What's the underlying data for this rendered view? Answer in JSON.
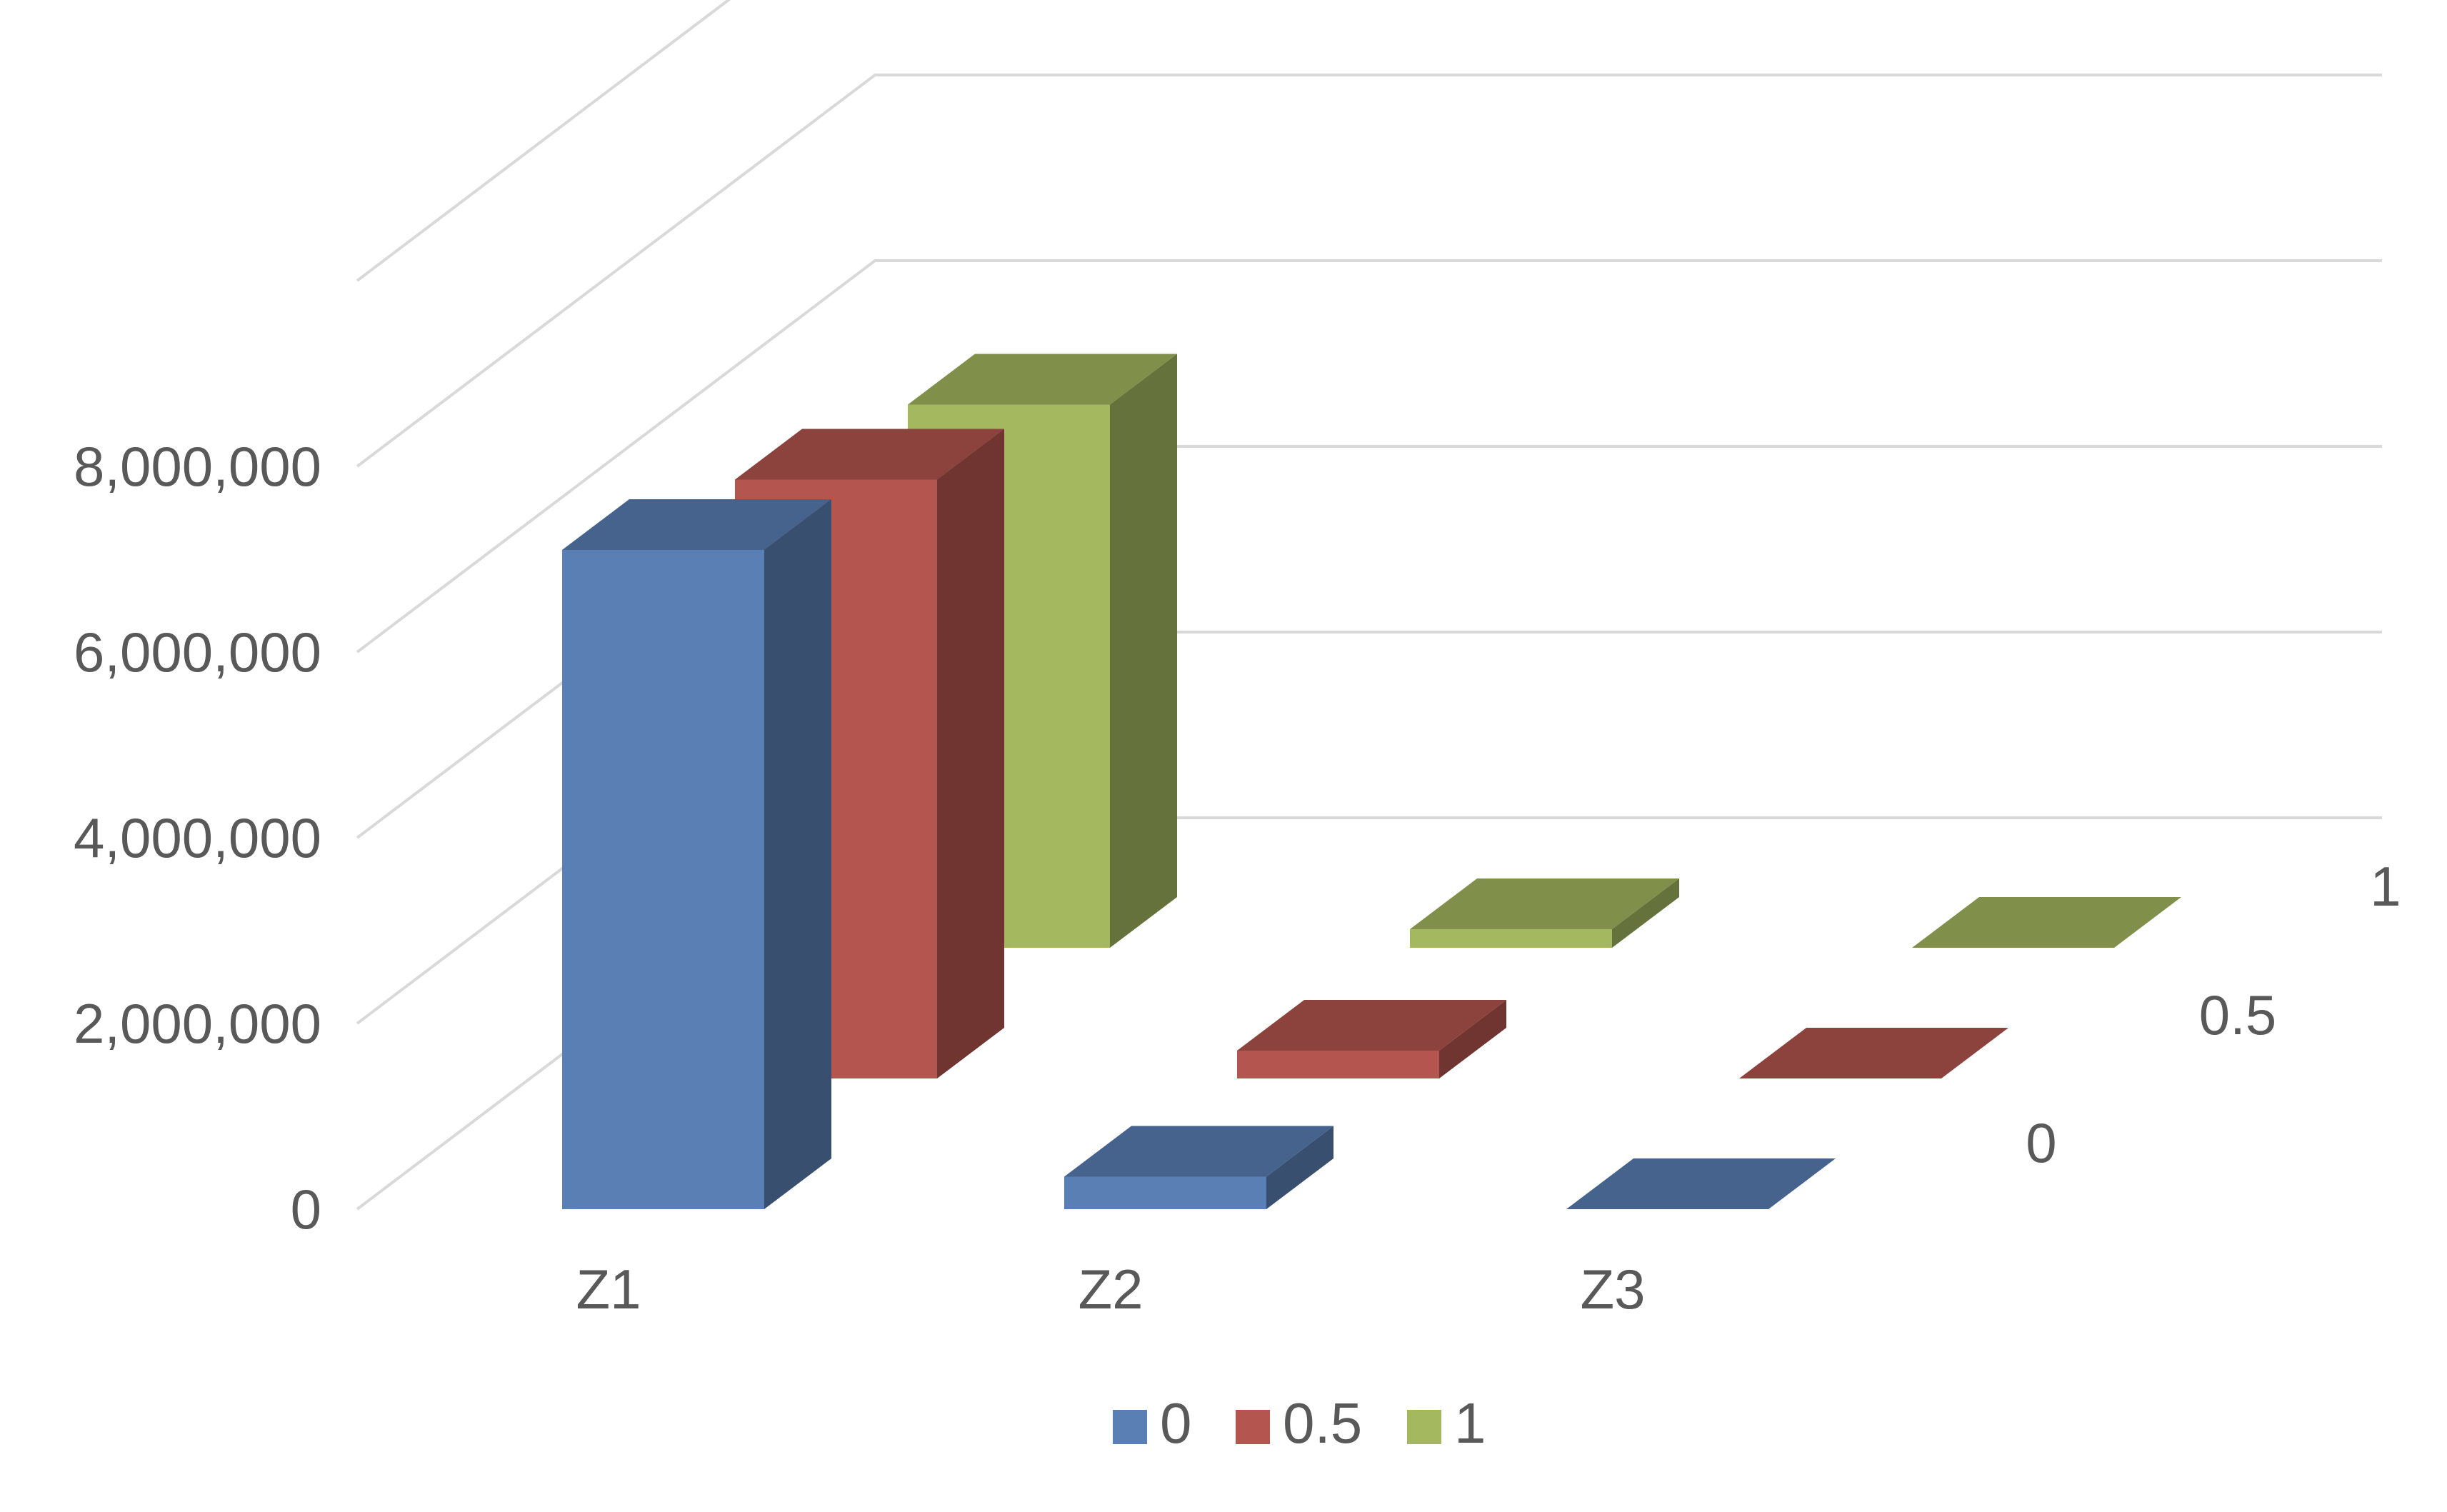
{
  "chart_data": {
    "type": "bar",
    "subtype": "3d-column",
    "title": "",
    "xlabel": "",
    "ylabel": "",
    "categories": [
      "Z1",
      "Z2",
      "Z3"
    ],
    "series": [
      {
        "name": "0",
        "values": [
          7100000,
          350000,
          0
        ],
        "color": "#5A7FB5"
      },
      {
        "name": "0.5",
        "values": [
          6450000,
          300000,
          0
        ],
        "color": "#B4564F"
      },
      {
        "name": "1",
        "values": [
          5850000,
          200000,
          0
        ],
        "color": "#A4B85F"
      }
    ],
    "ylim": [
      0,
      12000000
    ],
    "y_ticks": [
      "0",
      "2,000,000",
      "4,000,000",
      "6,000,000",
      "8,000,000"
    ],
    "grid": true,
    "legend": "bottom",
    "legend_entries": [
      "0",
      "0.5",
      "1"
    ]
  }
}
